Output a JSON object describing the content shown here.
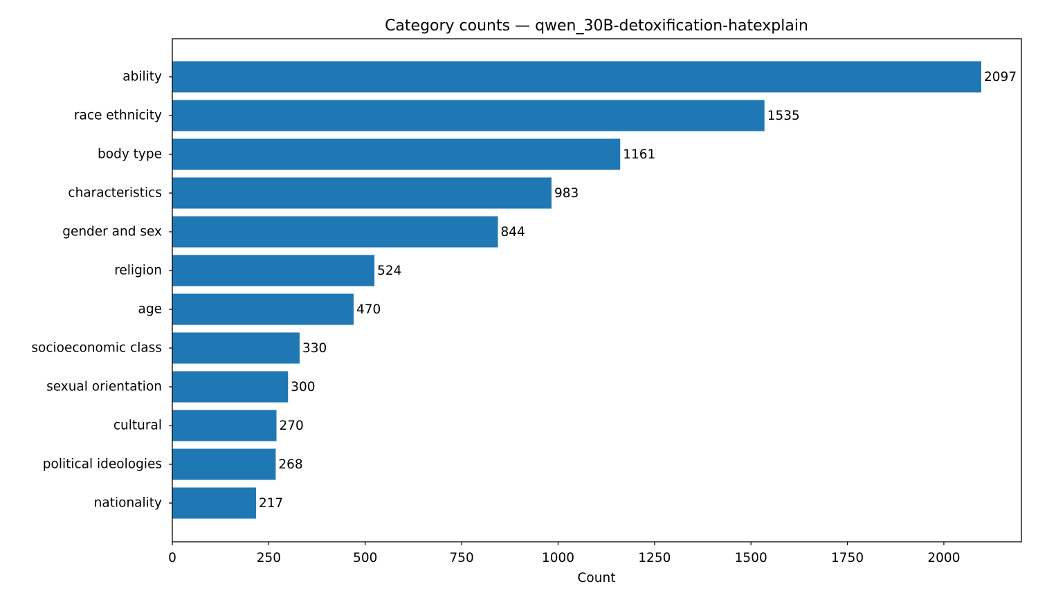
{
  "chart_data": {
    "type": "bar",
    "orientation": "horizontal",
    "title": "Category counts — qwen_30B-detoxification-hatexplain",
    "xlabel": "Count",
    "ylabel": "",
    "categories": [
      "ability",
      "race ethnicity",
      "body type",
      "characteristics",
      "gender and sex",
      "religion",
      "age",
      "socioeconomic class",
      "sexual orientation",
      "cultural",
      "political ideologies",
      "nationality"
    ],
    "values": [
      2097,
      1535,
      1161,
      983,
      844,
      524,
      470,
      330,
      300,
      270,
      268,
      217
    ],
    "xlim": [
      0,
      2201
    ],
    "xticks": [
      0,
      250,
      500,
      750,
      1000,
      1250,
      1500,
      1750,
      2000
    ],
    "grid": false,
    "bar_color": "#1f77b4",
    "data_labels": true
  }
}
